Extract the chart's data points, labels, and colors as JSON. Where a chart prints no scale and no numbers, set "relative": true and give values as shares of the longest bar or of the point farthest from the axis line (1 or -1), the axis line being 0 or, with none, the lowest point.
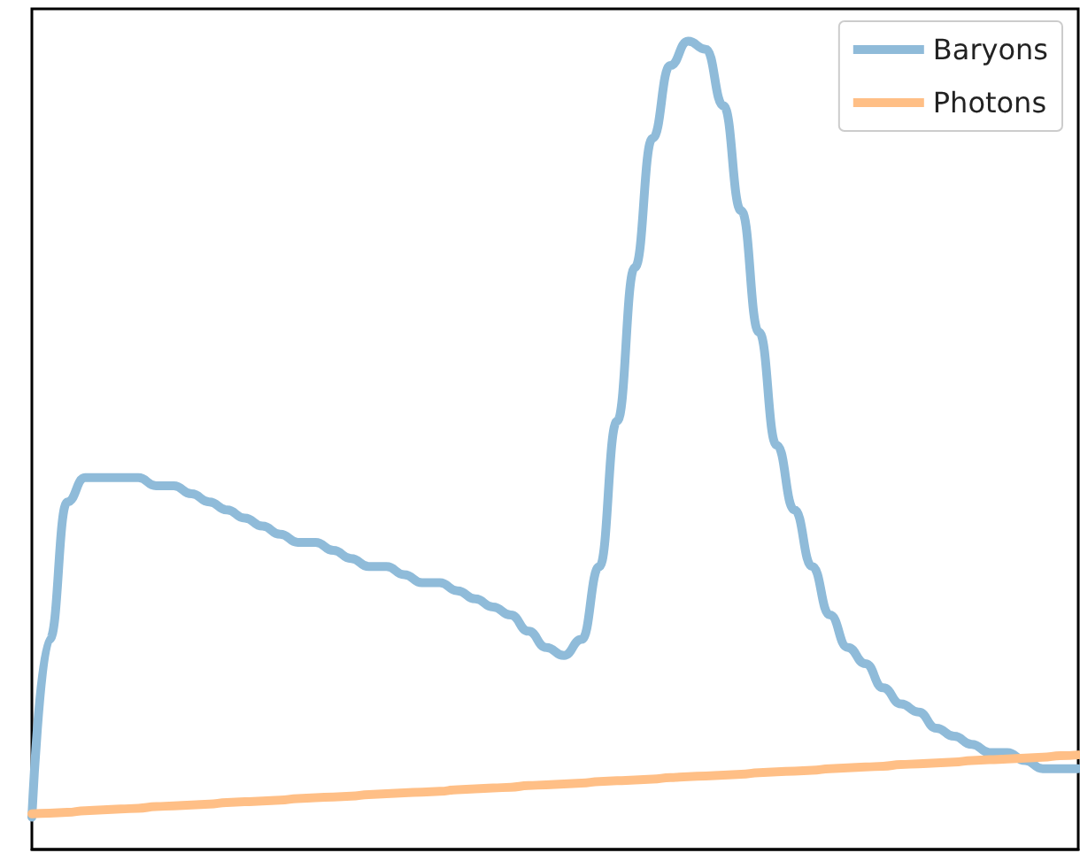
{
  "chart_data": {
    "type": "line",
    "relative": true,
    "categories": [
      null,
      null,
      null,
      null,
      null,
      null,
      null,
      null,
      null,
      null,
      null,
      null,
      null,
      null,
      null,
      null,
      null,
      null,
      null,
      null,
      null,
      null,
      null,
      null,
      null,
      null,
      null,
      null,
      null,
      null,
      null,
      null,
      null,
      null,
      null,
      null,
      null,
      null,
      null,
      null,
      null,
      null,
      null,
      null,
      null,
      null,
      null,
      null,
      null,
      null,
      null,
      null,
      null,
      null,
      null,
      null,
      null,
      null,
      null,
      null
    ],
    "series": [
      {
        "name": "Baryons",
        "color": "#8fbbd9",
        "values": [
          0.04,
          0.26,
          0.43,
          0.46,
          0.46,
          0.46,
          0.46,
          0.45,
          0.45,
          0.44,
          0.43,
          0.42,
          0.41,
          0.4,
          0.39,
          0.38,
          0.38,
          0.37,
          0.36,
          0.35,
          0.35,
          0.34,
          0.33,
          0.33,
          0.32,
          0.31,
          0.3,
          0.29,
          0.27,
          0.25,
          0.24,
          0.26,
          0.35,
          0.53,
          0.72,
          0.88,
          0.97,
          1,
          0.99,
          0.92,
          0.79,
          0.64,
          0.5,
          0.42,
          0.35,
          0.29,
          0.25,
          0.23,
          0.2,
          0.18,
          0.17,
          0.15,
          0.14,
          0.13,
          0.12,
          0.12,
          0.11,
          0.1,
          0.1,
          0.1
        ]
      },
      {
        "name": "Photons",
        "color": "#ffbf86",
        "values": [
          0.044,
          0.045,
          0.046,
          0.048,
          0.049,
          0.05,
          0.051,
          0.053,
          0.054,
          0.055,
          0.056,
          0.058,
          0.059,
          0.06,
          0.061,
          0.063,
          0.064,
          0.065,
          0.066,
          0.068,
          0.069,
          0.07,
          0.071,
          0.072,
          0.074,
          0.075,
          0.076,
          0.077,
          0.079,
          0.08,
          0.081,
          0.082,
          0.084,
          0.085,
          0.086,
          0.087,
          0.089,
          0.09,
          0.091,
          0.092,
          0.093,
          0.095,
          0.096,
          0.097,
          0.098,
          0.1,
          0.101,
          0.102,
          0.103,
          0.105,
          0.106,
          0.107,
          0.108,
          0.11,
          0.111,
          0.112,
          0.113,
          0.114,
          0.116,
          0.117
        ]
      }
    ],
    "legend": "top right",
    "grid": false,
    "marker": "none",
    "line_style": "solid"
  }
}
